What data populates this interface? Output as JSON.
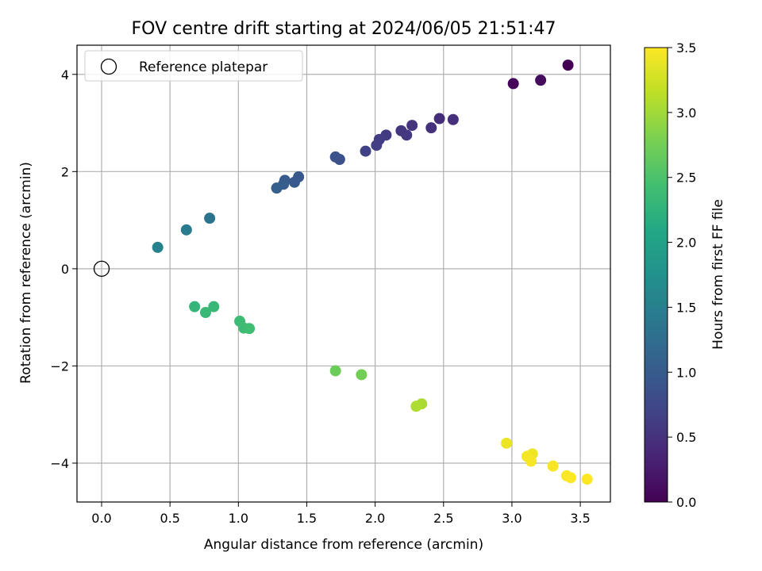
{
  "chart_data": {
    "type": "scatter",
    "title": "FOV centre drift starting at 2024/06/05 21:51:47",
    "xlabel": "Angular distance from reference (arcmin)",
    "ylabel": "Rotation from reference (arcmin)",
    "xlim": [
      -0.18,
      3.72
    ],
    "ylim": [
      -4.8,
      4.6
    ],
    "xticks": [
      0.0,
      0.5,
      1.0,
      1.5,
      2.0,
      2.5,
      3.0,
      3.5
    ],
    "xtick_labels": [
      "0.0",
      "0.5",
      "1.0",
      "1.5",
      "2.0",
      "2.5",
      "3.0",
      "3.5"
    ],
    "yticks": [
      -4,
      -2,
      0,
      2,
      4
    ],
    "ytick_labels": [
      "−4",
      "−2",
      "0",
      "2",
      "4"
    ],
    "grid": true,
    "legend": {
      "position": "top-left",
      "entries": [
        "Reference platepar"
      ]
    },
    "colorbar": {
      "label": "Hours from first FF file",
      "colormap": "viridis",
      "range": [
        0.0,
        3.5
      ],
      "ticks": [
        0.0,
        0.5,
        1.0,
        1.5,
        2.0,
        2.5,
        3.0,
        3.5
      ],
      "tick_labels": [
        "0.0",
        "0.5",
        "1.0",
        "1.5",
        "2.0",
        "2.5",
        "3.0",
        "3.5"
      ]
    },
    "reference_point": {
      "x": 0.0,
      "y": 0.0
    },
    "points": [
      {
        "x": 3.41,
        "y": 4.19,
        "hours": 0.0
      },
      {
        "x": 3.01,
        "y": 3.81,
        "hours": 0.05
      },
      {
        "x": 3.21,
        "y": 3.88,
        "hours": 0.1
      },
      {
        "x": 2.47,
        "y": 3.09,
        "hours": 0.45
      },
      {
        "x": 2.57,
        "y": 3.07,
        "hours": 0.47
      },
      {
        "x": 2.41,
        "y": 2.9,
        "hours": 0.5
      },
      {
        "x": 2.27,
        "y": 2.95,
        "hours": 0.52
      },
      {
        "x": 2.19,
        "y": 2.84,
        "hours": 0.55
      },
      {
        "x": 2.23,
        "y": 2.75,
        "hours": 0.57
      },
      {
        "x": 2.08,
        "y": 2.75,
        "hours": 0.6
      },
      {
        "x": 2.03,
        "y": 2.66,
        "hours": 0.62
      },
      {
        "x": 2.01,
        "y": 2.54,
        "hours": 0.65
      },
      {
        "x": 1.93,
        "y": 2.42,
        "hours": 0.68
      },
      {
        "x": 1.74,
        "y": 2.25,
        "hours": 0.85
      },
      {
        "x": 1.71,
        "y": 2.3,
        "hours": 0.88
      },
      {
        "x": 1.44,
        "y": 1.89,
        "hours": 0.95
      },
      {
        "x": 1.41,
        "y": 1.78,
        "hours": 0.97
      },
      {
        "x": 1.34,
        "y": 1.82,
        "hours": 1.0
      },
      {
        "x": 1.33,
        "y": 1.74,
        "hours": 1.02
      },
      {
        "x": 1.28,
        "y": 1.66,
        "hours": 1.05
      },
      {
        "x": 0.79,
        "y": 1.04,
        "hours": 1.35
      },
      {
        "x": 0.62,
        "y": 0.8,
        "hours": 1.45
      },
      {
        "x": 0.41,
        "y": 0.44,
        "hours": 1.55
      },
      {
        "x": 0.68,
        "y": -0.78,
        "hours": 2.3
      },
      {
        "x": 0.82,
        "y": -0.78,
        "hours": 2.33
      },
      {
        "x": 0.76,
        "y": -0.9,
        "hours": 2.35
      },
      {
        "x": 1.01,
        "y": -1.08,
        "hours": 2.38
      },
      {
        "x": 1.04,
        "y": -1.22,
        "hours": 2.4
      },
      {
        "x": 1.08,
        "y": -1.23,
        "hours": 2.42
      },
      {
        "x": 1.71,
        "y": -2.1,
        "hours": 2.7
      },
      {
        "x": 1.9,
        "y": -2.18,
        "hours": 2.75
      },
      {
        "x": 2.34,
        "y": -2.78,
        "hours": 3.05
      },
      {
        "x": 2.3,
        "y": -2.83,
        "hours": 3.07
      },
      {
        "x": 2.96,
        "y": -3.59,
        "hours": 3.4
      },
      {
        "x": 3.15,
        "y": -3.81,
        "hours": 3.42
      },
      {
        "x": 3.11,
        "y": -3.86,
        "hours": 3.44
      },
      {
        "x": 3.14,
        "y": -3.96,
        "hours": 3.46
      },
      {
        "x": 3.3,
        "y": -4.06,
        "hours": 3.47
      },
      {
        "x": 3.4,
        "y": -4.26,
        "hours": 3.48
      },
      {
        "x": 3.43,
        "y": -4.3,
        "hours": 3.49
      },
      {
        "x": 3.55,
        "y": -4.33,
        "hours": 3.5
      }
    ]
  }
}
